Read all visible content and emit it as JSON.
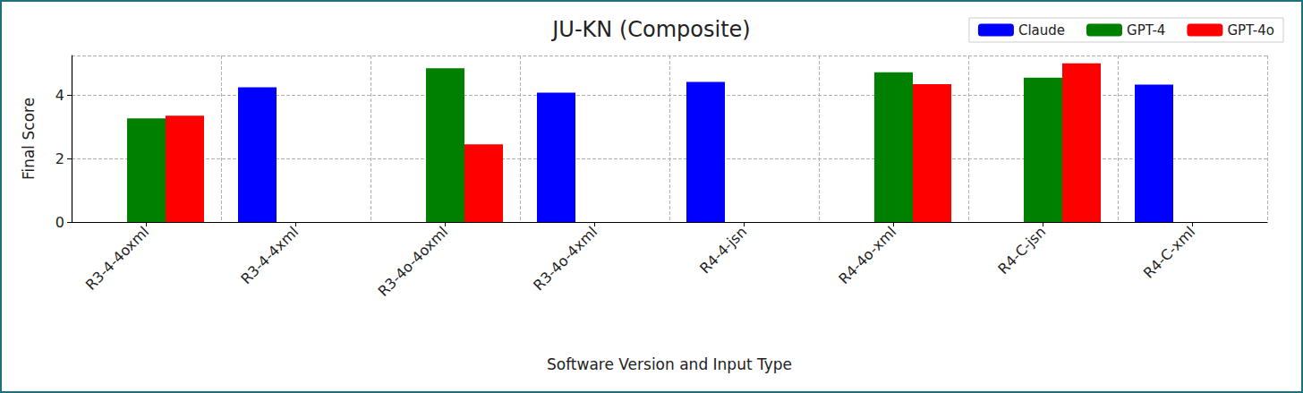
{
  "chart_data": {
    "type": "bar",
    "title": "JU-KN (Composite)",
    "x_label": "Software Version and Input Type",
    "y_label": "Final Score",
    "categories": [
      "R3-4-4oxml",
      "R3-4-4xml",
      "R3-4o-4oxml",
      "R3-4o-4xml",
      "R4-4-jsn",
      "R4-4o-xml",
      "R4-C-jsn",
      "R4-C-xml"
    ],
    "series": [
      {
        "name": "Claude",
        "color": "#0000ff",
        "values": [
          null,
          4.25,
          null,
          4.08,
          4.42,
          null,
          null,
          4.33
        ]
      },
      {
        "name": "GPT-4",
        "color": "#008000",
        "values": [
          3.27,
          null,
          4.85,
          null,
          null,
          4.72,
          4.55,
          null
        ]
      },
      {
        "name": "GPT-4o",
        "color": "#ff0000",
        "values": [
          3.35,
          null,
          2.45,
          null,
          null,
          4.35,
          5.0,
          null
        ]
      }
    ],
    "ylim": [
      0,
      5.25
    ],
    "yticks": [
      0,
      2,
      4
    ],
    "grid": true,
    "legend": "upper right"
  }
}
